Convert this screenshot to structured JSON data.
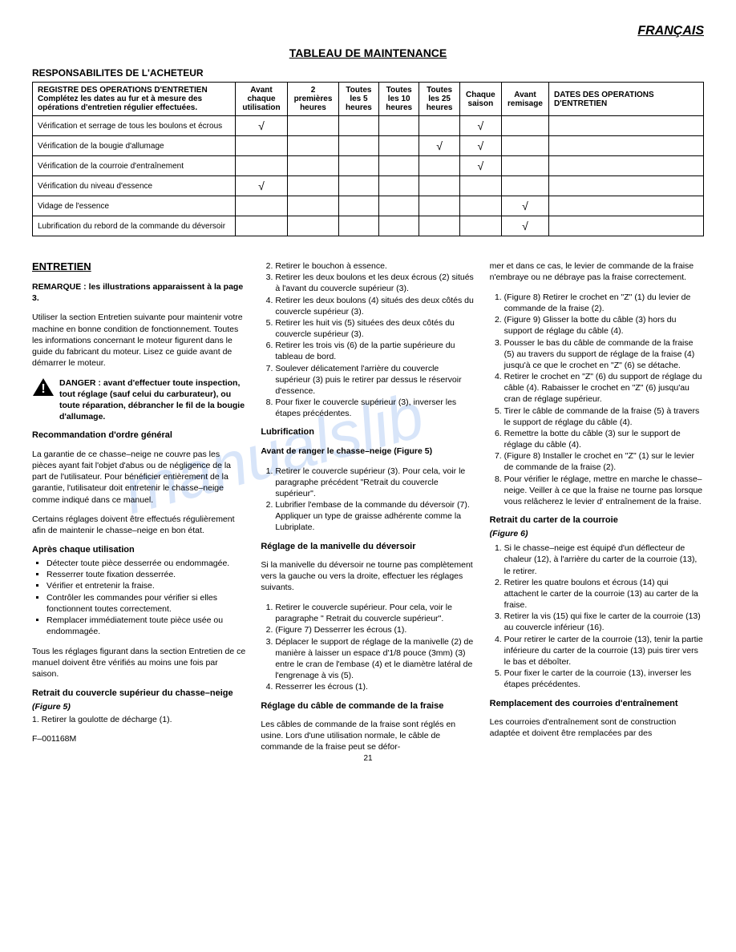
{
  "header": {
    "language": "FRANÇAIS",
    "main_title": "TABLEAU DE MAINTENANCE",
    "sub_title": "RESPONSABILITES DE L'ACHETEUR"
  },
  "table": {
    "col_headers": {
      "c0": "REGISTRE DES OPERATIONS D'ENTRETIEN\n\nComplétez les dates au fur et à mesure des opérations d'entretien régulier effectuées.",
      "c1": "Avant chaque utilisation",
      "c2": "2 premières heures",
      "c3": "Toutes les 5 heures",
      "c4": "Toutes les 10 heures",
      "c5": "Toutes les 25 heures",
      "c6": "Chaque saison",
      "c7": "Avant remisage",
      "c8": "DATES DES OPERATIONS D'ENTRETIEN"
    },
    "rows": [
      {
        "label": "Vérification et serrage de tous les boulons et écrous",
        "c1": "√",
        "c2": "",
        "c3": "",
        "c4": "",
        "c5": "",
        "c6": "√",
        "c7": ""
      },
      {
        "label": "Vérification de la bougie d'allumage",
        "c1": "",
        "c2": "",
        "c3": "",
        "c4": "",
        "c5": "√",
        "c6": "√",
        "c7": ""
      },
      {
        "label": "Vérification de la courroie d'entraînement",
        "c1": "",
        "c2": "",
        "c3": "",
        "c4": "",
        "c5": "",
        "c6": "√",
        "c7": ""
      },
      {
        "label": "Vérification du niveau d'essence",
        "c1": "√",
        "c2": "",
        "c3": "",
        "c4": "",
        "c5": "",
        "c6": "",
        "c7": ""
      },
      {
        "label": "Vidage de l'essence",
        "c1": "",
        "c2": "",
        "c3": "",
        "c4": "",
        "c5": "",
        "c6": "",
        "c7": "√"
      },
      {
        "label": "Lubrification du rebord de la commande du déversoir",
        "c1": "",
        "c2": "",
        "c3": "",
        "c4": "",
        "c5": "",
        "c6": "",
        "c7": "√"
      }
    ]
  },
  "entretien": {
    "title": "ENTRETIEN",
    "remarque": "REMARQUE : les illustrations apparaissent à la page 3.",
    "intro": "Utiliser la section Entretien suivante pour maintenir votre machine en bonne condition de fonctionnement. Toutes les informations concernant le moteur figurent dans le guide du fabricant du moteur. Lisez ce guide avant de démarrer le moteur.",
    "danger": "DANGER : avant d'effectuer toute inspection, tout réglage (sauf celui du carburateur), ou toute réparation, débrancher le fil de la bougie d'allumage.",
    "recom_title": "Recommandation d'ordre général",
    "recom_p1": "La garantie de ce chasse–neige ne couvre pas les pièces ayant fait l'objet d'abus ou de négligence de la part de l'utilisateur. Pour bénéficier entièrement de la garantie, l'utilisateur doit entretenir le chasse–neige comme indiqué dans ce manuel.",
    "recom_p2": "Certains réglages doivent être effectués régulièrement afin de maintenir le chasse–neige en bon état.",
    "apres_title": "Après chaque utilisation",
    "apres_items": [
      "Détecter toute pièce desserrée ou endommagée.",
      "Resserrer toute fixation desserrée.",
      "Vérifier et entretenir la fraise.",
      "Contrôler les commandes pour vérifier si elles fonctionnent toutes correctement.",
      "Remplacer immédiatement toute pièce usée ou endommagée."
    ],
    "apres_foot": "Tous les réglages figurant dans la section Entretien de ce manuel doivent être vérifiés au moins une fois par saison.",
    "retrait_title": "Retrait du couvercle supérieur du chasse–neige",
    "retrait_fig": "(Figure 5)",
    "retrait_1": "1. Retirer la goulotte de décharge (1).",
    "doc_id": "F–001168M"
  },
  "col2": {
    "steps": [
      "Retirer le bouchon à essence.",
      "Retirer les deux boulons et les deux écrous (2) situés à l'avant du couvercle supérieur (3).",
      "Retirer les deux boulons (4) situés des deux côtés du couvercle supérieur (3).",
      "Retirer les huit vis (5) situées des deux côtés du couvercle supérieur (3).",
      "Retirer les trois vis (6) de la partie supérieure du tableau de bord.",
      "Soulever délicatement l'arrière du couvercle supérieur (3) puis le retirer par dessus le réservoir d'essence.",
      "Pour fixer le couvercle supérieur (3), inverser les étapes précédentes."
    ],
    "lub_title": "Lubrification",
    "lub_sub": "Avant de ranger le chasse–neige (Figure 5)",
    "lub_steps": [
      "Retirer le couvercle supérieur (3). Pour cela, voir le paragraphe précédent \"Retrait du couvercle supérieur\".",
      "Lubrifier l'embase de la commande du déversoir (7). Appliquer un type de graisse adhérente comme la Lubriplate."
    ],
    "manivelle_title": "Réglage de la manivelle du déversoir",
    "manivelle_intro": "Si la manivelle du déversoir ne tourne pas complètement vers la gauche ou vers la droite, effectuer les réglages suivants.",
    "manivelle_steps": [
      "Retirer le couvercle supérieur. Pour cela, voir le paragraphe \" Retrait du couvercle supérieur\".",
      "(Figure 7) Desserrer les écrous (1).",
      "Déplacer le support de réglage de la manivelle (2) de manière à laisser un espace d'1/8 pouce (3mm) (3) entre le cran de l'embase (4) et le diamètre latéral de l'engrenage à vis (5).",
      "Resserrer les écrous (1)."
    ],
    "cable_title": "Réglage du câble de commande de la fraise",
    "cable_intro": "Les câbles de commande de la fraise sont réglés en usine. Lors d'une utilisation normale, le câble de commande de la fraise peut se défor-"
  },
  "col3": {
    "cable_cont": "mer et dans ce cas, le levier de commande de la fraise n'embraye ou ne débraye pas la fraise correctement.",
    "cable_steps": [
      "(Figure 8) Retirer le crochet en \"Z\" (1) du levier de commande de la fraise (2).",
      "(Figure 9) Glisser la botte du câble (3) hors du support de réglage du câble (4).",
      "Pousser le bas du câble de commande de la fraise (5) au travers du support de réglage de la fraise (4) jusqu'à ce que le crochet en \"Z\" (6) se détache.",
      "Retirer le crochet en \"Z\" (6) du support de réglage du câble (4). Rabaisser le crochet en \"Z\" (6) jusqu'au cran de réglage supérieur.",
      "Tirer le câble de commande de la fraise (5) à travers le support de réglage du câble (4).",
      "Remettre la botte du câble (3) sur le support de réglage du câble (4).",
      "(Figure 8) Installer le crochet en \"Z\" (1) sur le levier de commande de la fraise (2).",
      "Pour vérifier le réglage, mettre en marche le chasse–neige. Veiller à ce que la fraise ne tourne pas lorsque vous relâcherez le levier d' entraînement de la fraise."
    ],
    "carter_title": "Retrait du carter de la courroie",
    "carter_fig": "(Figure 6)",
    "carter_steps": [
      "Si le chasse–neige est équipé d'un déflecteur de chaleur (12), à l'arrière du carter de la courroie (13), le retirer.",
      "Retirer les quatre boulons et écrous (14) qui attachent le carter de la courroie (13) au carter de la fraise.",
      "Retirer la vis (15) qui fixe le carter de la courroie (13) au couvercle inférieur (16).",
      "Pour retirer le carter de la courroie (13), tenir la partie inférieure du carter de la courroie (13) puis tirer vers le bas et déboîter.",
      "Pour fixer le carter de la courroie (13), inverser les étapes précédentes."
    ],
    "remp_title": "Remplacement des courroies d'entraînement",
    "remp_p": "Les courroies d'entraînement sont de construction adaptée et doivent être remplacées par des"
  },
  "page_number": "21",
  "watermark": "manualslib"
}
